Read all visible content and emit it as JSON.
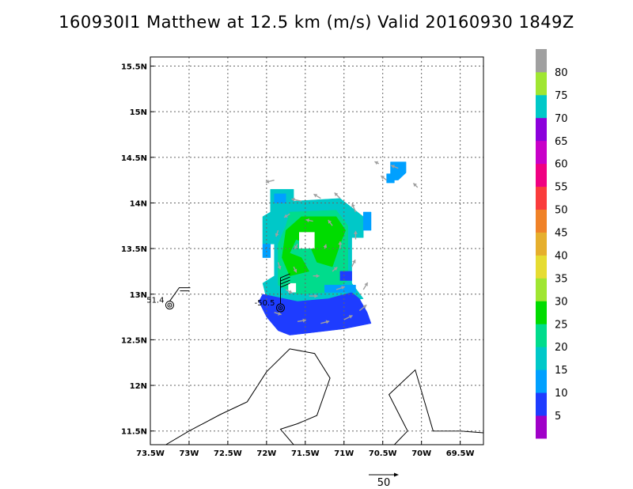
{
  "title": "160930I1 Matthew at 12.5 km (m/s) Valid 20160930 1849Z",
  "chart_data": {
    "type": "heatmap",
    "title": "160930I1 Matthew at 12.5 km (m/s) Valid 20160930 1849Z",
    "xlim": [
      -73.5,
      -69.2
    ],
    "ylim": [
      11.35,
      15.6
    ],
    "x_ticks": [
      {
        "v": -73.5,
        "label": "73.5W"
      },
      {
        "v": -73.0,
        "label": "73W"
      },
      {
        "v": -72.5,
        "label": "72.5W"
      },
      {
        "v": -72.0,
        "label": "72W"
      },
      {
        "v": -71.5,
        "label": "71.5W"
      },
      {
        "v": -71.0,
        "label": "71W"
      },
      {
        "v": -70.5,
        "label": "70.5W"
      },
      {
        "v": -70.0,
        "label": "70W"
      },
      {
        "v": -69.5,
        "label": "69.5W"
      }
    ],
    "y_ticks": [
      {
        "v": 11.5,
        "label": "11.5N"
      },
      {
        "v": 12.0,
        "label": "12N"
      },
      {
        "v": 12.5,
        "label": "12.5N"
      },
      {
        "v": 13.0,
        "label": "13N"
      },
      {
        "v": 13.5,
        "label": "13.5N"
      },
      {
        "v": 14.0,
        "label": "14N"
      },
      {
        "v": 14.5,
        "label": "14.5N"
      },
      {
        "v": 15.0,
        "label": "15N"
      },
      {
        "v": 15.5,
        "label": "15.5N"
      }
    ],
    "grid": true,
    "colorbar": {
      "labels": [
        "5",
        "10",
        "15",
        "20",
        "25",
        "30",
        "35",
        "40",
        "45",
        "50",
        "55",
        "60",
        "65",
        "70",
        "75",
        "80"
      ],
      "colors": [
        "#a000c8",
        "#1e3cff",
        "#00a0ff",
        "#00c8c8",
        "#00dc8c",
        "#00dc00",
        "#a0e632",
        "#e6dc32",
        "#e6af2d",
        "#f08228",
        "#fa3c3c",
        "#f00082",
        "#c800c8",
        "#8c00dc",
        "#00c8c8",
        "#a0e632",
        "#a0a0a0"
      ]
    },
    "wind_regions": [
      {
        "speed_class": "20-25",
        "color": "#00c8c8",
        "polygon": [
          [
            -71.95,
            14.15
          ],
          [
            -71.65,
            14.15
          ],
          [
            -71.65,
            14.02
          ],
          [
            -71.05,
            14.05
          ],
          [
            -70.75,
            13.85
          ],
          [
            -70.75,
            13.62
          ],
          [
            -70.9,
            13.62
          ],
          [
            -70.9,
            13.12
          ],
          [
            -70.75,
            12.95
          ],
          [
            -71.55,
            12.85
          ],
          [
            -72.0,
            12.95
          ],
          [
            -72.05,
            13.12
          ],
          [
            -71.9,
            13.2
          ],
          [
            -71.9,
            13.55
          ],
          [
            -72.05,
            13.55
          ],
          [
            -72.05,
            13.85
          ],
          [
            -71.95,
            13.9
          ]
        ]
      },
      {
        "speed_class": "15-20",
        "color": "#00a0ff",
        "polygon": [
          [
            -71.9,
            14.1
          ],
          [
            -71.75,
            14.1
          ],
          [
            -71.75,
            14.0
          ],
          [
            -71.9,
            14.0
          ]
        ]
      },
      {
        "speed_class": "15-20",
        "color": "#00a0ff",
        "polygon": [
          [
            -72.05,
            13.55
          ],
          [
            -71.95,
            13.55
          ],
          [
            -71.95,
            13.4
          ],
          [
            -72.05,
            13.4
          ]
        ]
      },
      {
        "speed_class": "15-20",
        "color": "#00a0ff",
        "polygon": [
          [
            -70.75,
            13.9
          ],
          [
            -70.65,
            13.9
          ],
          [
            -70.65,
            13.7
          ],
          [
            -70.75,
            13.7
          ]
        ]
      },
      {
        "speed_class": "15-20",
        "color": "#00a0ff",
        "polygon": [
          [
            -70.4,
            14.45
          ],
          [
            -70.2,
            14.45
          ],
          [
            -70.2,
            14.33
          ],
          [
            -70.3,
            14.25
          ],
          [
            -70.4,
            14.25
          ]
        ]
      },
      {
        "speed_class": "15-20",
        "color": "#00a0ff",
        "polygon": [
          [
            -70.45,
            14.32
          ],
          [
            -70.35,
            14.32
          ],
          [
            -70.35,
            14.22
          ],
          [
            -70.45,
            14.22
          ]
        ]
      },
      {
        "speed_class": "25-30",
        "color": "#00dc8c",
        "polygon": [
          [
            -71.7,
            13.9
          ],
          [
            -71.1,
            13.92
          ],
          [
            -70.95,
            13.75
          ],
          [
            -70.95,
            13.15
          ],
          [
            -71.2,
            13.02
          ],
          [
            -71.6,
            13.0
          ],
          [
            -71.85,
            13.1
          ],
          [
            -71.85,
            13.55
          ],
          [
            -71.75,
            13.75
          ]
        ]
      },
      {
        "speed_class": "30-35",
        "color": "#00dc00",
        "polygon": [
          [
            -71.55,
            13.85
          ],
          [
            -71.1,
            13.85
          ],
          [
            -70.98,
            13.7
          ],
          [
            -71.05,
            13.55
          ],
          [
            -71.15,
            13.3
          ],
          [
            -71.35,
            13.35
          ],
          [
            -71.45,
            13.55
          ],
          [
            -71.62,
            13.6
          ],
          [
            -71.7,
            13.45
          ],
          [
            -71.55,
            13.4
          ],
          [
            -71.45,
            13.25
          ],
          [
            -71.7,
            13.2
          ],
          [
            -71.8,
            13.4
          ],
          [
            -71.75,
            13.7
          ]
        ]
      },
      {
        "speed_class": "10-15",
        "color": "#1e3cff",
        "polygon": [
          [
            -72.05,
            13.0
          ],
          [
            -71.6,
            12.92
          ],
          [
            -71.2,
            12.95
          ],
          [
            -70.9,
            13.02
          ],
          [
            -70.8,
            12.95
          ],
          [
            -70.7,
            12.8
          ],
          [
            -70.65,
            12.68
          ],
          [
            -71.0,
            12.62
          ],
          [
            -71.4,
            12.58
          ],
          [
            -71.7,
            12.55
          ],
          [
            -71.85,
            12.6
          ],
          [
            -72.0,
            12.75
          ],
          [
            -72.1,
            12.92
          ]
        ]
      },
      {
        "speed_class": "15-20",
        "color": "#00a0ff",
        "polygon": [
          [
            -71.25,
            13.1
          ],
          [
            -70.85,
            13.1
          ],
          [
            -70.85,
            13.02
          ],
          [
            -71.25,
            13.02
          ]
        ]
      },
      {
        "speed_class": "10-15",
        "color": "#1e3cff",
        "polygon": [
          [
            -71.05,
            13.25
          ],
          [
            -70.9,
            13.25
          ],
          [
            -70.9,
            13.15
          ],
          [
            -71.05,
            13.15
          ]
        ]
      }
    ],
    "calm_holes": [
      {
        "polygon": [
          [
            -71.58,
            13.68
          ],
          [
            -71.38,
            13.68
          ],
          [
            -71.38,
            13.5
          ],
          [
            -71.58,
            13.5
          ]
        ]
      },
      {
        "polygon": [
          [
            -71.72,
            13.12
          ],
          [
            -71.62,
            13.12
          ],
          [
            -71.62,
            13.02
          ],
          [
            -71.72,
            13.02
          ]
        ]
      }
    ],
    "wind_vectors": [
      {
        "lon": -71.9,
        "lat": 14.25,
        "u": -12,
        "v": -3
      },
      {
        "lon": -71.55,
        "lat": 14.02,
        "u": -14,
        "v": 3
      },
      {
        "lon": -71.3,
        "lat": 14.05,
        "u": -10,
        "v": 6
      },
      {
        "lon": -71.05,
        "lat": 14.05,
        "u": -8,
        "v": 8
      },
      {
        "lon": -70.85,
        "lat": 13.9,
        "u": -5,
        "v": 12
      },
      {
        "lon": -70.85,
        "lat": 13.6,
        "u": 0,
        "v": 12
      },
      {
        "lon": -70.9,
        "lat": 13.3,
        "u": 5,
        "v": 10
      },
      {
        "lon": -71.1,
        "lat": 13.05,
        "u": 12,
        "v": 4
      },
      {
        "lon": -71.45,
        "lat": 12.98,
        "u": 12,
        "v": 0
      },
      {
        "lon": -71.75,
        "lat": 13.05,
        "u": 9,
        "v": -5
      },
      {
        "lon": -71.85,
        "lat": 13.35,
        "u": 3,
        "v": -10
      },
      {
        "lon": -71.85,
        "lat": 13.7,
        "u": -3,
        "v": -9
      },
      {
        "lon": -71.7,
        "lat": 13.88,
        "u": -8,
        "v": -5
      },
      {
        "lon": -71.4,
        "lat": 13.8,
        "u": -10,
        "v": 2
      },
      {
        "lon": -71.15,
        "lat": 13.75,
        "u": -6,
        "v": 8
      },
      {
        "lon": -71.05,
        "lat": 13.5,
        "u": 0,
        "v": 10
      },
      {
        "lon": -71.15,
        "lat": 13.25,
        "u": 7,
        "v": 6
      },
      {
        "lon": -71.4,
        "lat": 13.2,
        "u": 9,
        "v": 0
      },
      {
        "lon": -71.65,
        "lat": 13.3,
        "u": 4,
        "v": -8
      },
      {
        "lon": -71.6,
        "lat": 13.55,
        "u": -4,
        "v": -7
      },
      {
        "lon": -71.25,
        "lat": 13.5,
        "u": 2,
        "v": 6
      },
      {
        "lon": -71.9,
        "lat": 12.8,
        "u": 10,
        "v": -3
      },
      {
        "lon": -71.6,
        "lat": 12.7,
        "u": 12,
        "v": 2
      },
      {
        "lon": -71.3,
        "lat": 12.68,
        "u": 12,
        "v": 3
      },
      {
        "lon": -71.0,
        "lat": 12.72,
        "u": 12,
        "v": 6
      },
      {
        "lon": -70.8,
        "lat": 12.82,
        "u": 10,
        "v": 8
      },
      {
        "lon": -70.75,
        "lat": 13.05,
        "u": 6,
        "v": 10
      },
      {
        "lon": -70.3,
        "lat": 14.38,
        "u": -10,
        "v": 4
      },
      {
        "lon": -70.45,
        "lat": 14.25,
        "u": -8,
        "v": 6
      },
      {
        "lon": -70.05,
        "lat": 14.17,
        "u": -6,
        "v": 6
      },
      {
        "lon": -70.55,
        "lat": 14.43,
        "u": -6,
        "v": 3
      }
    ],
    "vector_key": {
      "label": "50",
      "value": 50
    },
    "observations": [
      {
        "lon": -73.25,
        "lat": 12.88,
        "label": "51.4"
      },
      {
        "lon": -71.82,
        "lat": 12.85,
        "label": "-50.5"
      }
    ],
    "coastline": [
      [
        [
          -73.3,
          11.35
        ],
        [
          -73.0,
          11.5
        ],
        [
          -72.6,
          11.68
        ],
        [
          -72.25,
          11.82
        ],
        [
          -72.0,
          12.15
        ],
        [
          -71.7,
          12.4
        ],
        [
          -71.38,
          12.35
        ],
        [
          -71.18,
          12.08
        ],
        [
          -71.35,
          11.67
        ],
        [
          -71.6,
          11.58
        ],
        [
          -71.82,
          11.52
        ],
        [
          -71.65,
          11.35
        ]
      ],
      [
        [
          -70.35,
          11.35
        ],
        [
          -70.18,
          11.5
        ],
        [
          -70.42,
          11.9
        ],
        [
          -70.08,
          12.17
        ],
        [
          -69.85,
          11.5
        ],
        [
          -69.5,
          11.5
        ],
        [
          -69.2,
          11.48
        ]
      ]
    ]
  }
}
